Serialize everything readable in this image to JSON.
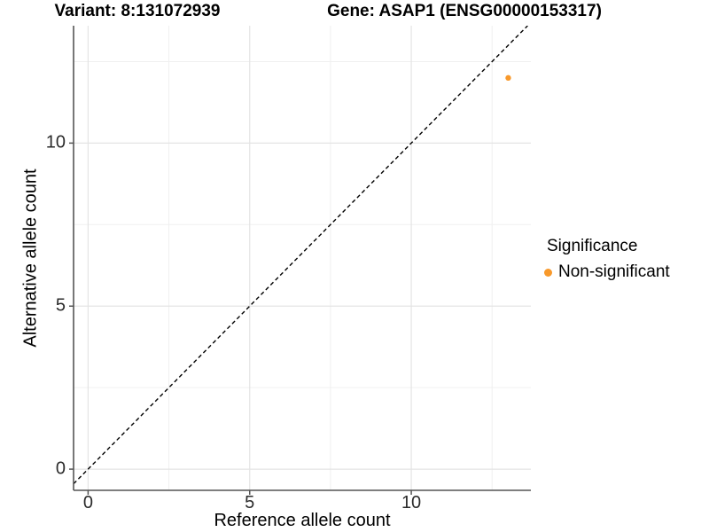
{
  "titles": {
    "variant": "Variant: 8:131072939",
    "gene": "Gene: ASAP1 (ENSG00000153317)"
  },
  "chart_data": {
    "type": "scatter",
    "xlabel": "Reference allele count",
    "ylabel": "Alternative allele count",
    "xlim": [
      -0.45,
      13.7
    ],
    "ylim": [
      -0.65,
      13.6
    ],
    "x_ticks": [
      0,
      5,
      10
    ],
    "y_ticks": [
      0,
      5,
      10
    ],
    "x_minor_ticks": [
      2.5,
      7.5,
      12.5
    ],
    "y_minor_ticks": [
      2.5,
      7.5,
      12.5
    ],
    "grid": "major-and-minor, light gray on white",
    "reference_line": {
      "kind": "identity y=x",
      "style": "dashed",
      "color": "#000000"
    },
    "series": [
      {
        "name": "Non-significant",
        "color": "#F8992B",
        "points": [
          {
            "x": 13,
            "y": 12
          }
        ]
      }
    ],
    "legend": {
      "title": "Significance",
      "position": "right",
      "entries": [
        {
          "label": "Non-significant",
          "color": "#F8992B"
        }
      ]
    },
    "colors": {
      "point": "#F8992B",
      "axis_line": "#555555",
      "grid_major": "#e4e4e4",
      "grid_minor": "#f0f0f0",
      "tick_label": "#2b2b2b"
    }
  }
}
